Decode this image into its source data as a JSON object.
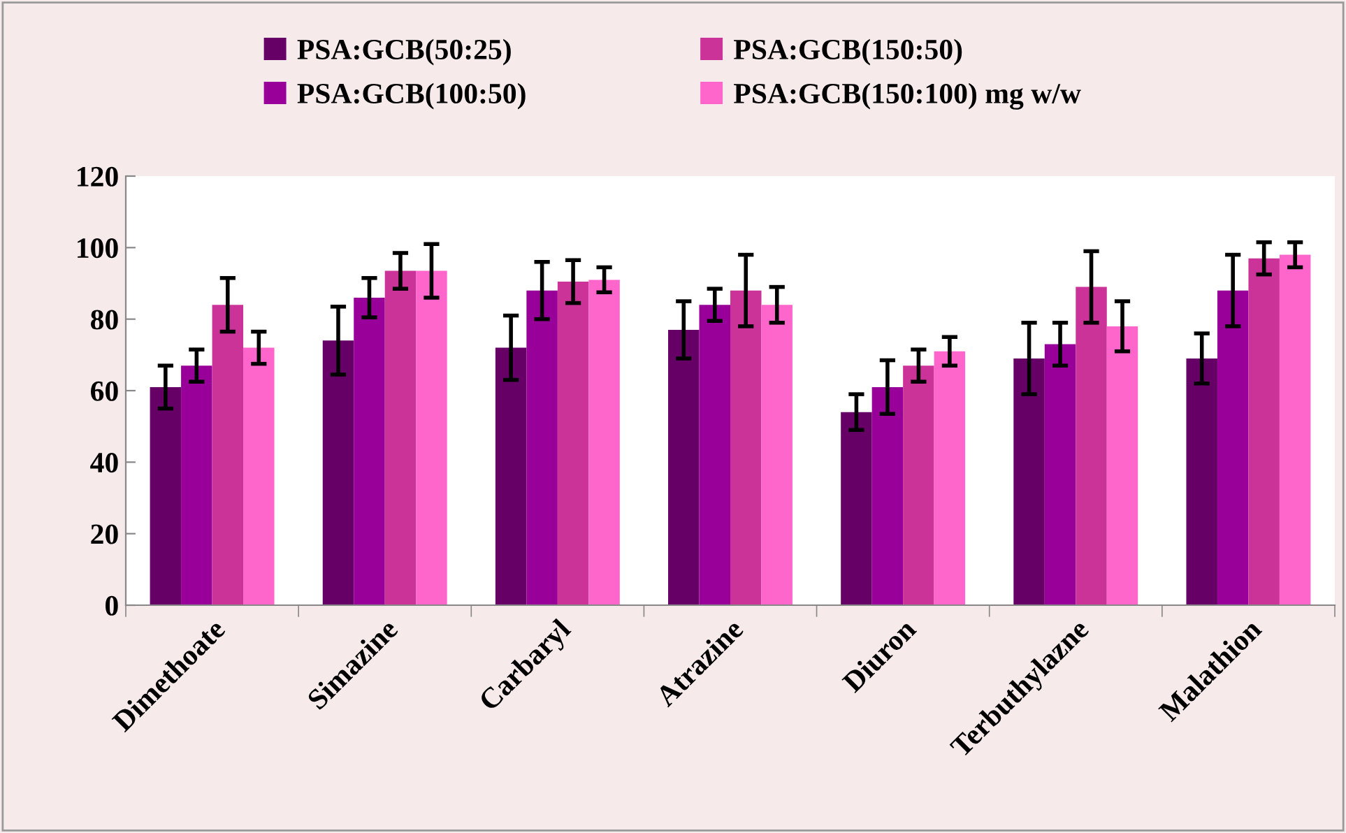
{
  "chart_data": {
    "type": "bar",
    "categories": [
      "Dimethoate",
      "Simazine",
      "Carbaryl",
      "Atrazine",
      "Diuron",
      "Terbuthylazne",
      "Malathion"
    ],
    "series": [
      {
        "name": "PSA:GCB(50:25)",
        "color": "#660066",
        "values": [
          61,
          74,
          72,
          77,
          54,
          69,
          69
        ],
        "errors": [
          6,
          9.5,
          9,
          8,
          5,
          10,
          7
        ]
      },
      {
        "name": "PSA:GCB(100:50)",
        "color": "#990099",
        "values": [
          67,
          86,
          88,
          84,
          61,
          73,
          88
        ],
        "errors": [
          4.5,
          5.5,
          8,
          4.5,
          7.5,
          6,
          10
        ]
      },
      {
        "name": "PSA:GCB(150:50)",
        "color": "#cc3399",
        "values": [
          84,
          93.5,
          90.5,
          88,
          67,
          89,
          97
        ],
        "errors": [
          7.5,
          5,
          6,
          10,
          4.5,
          10,
          4.5
        ]
      },
      {
        "name": "PSA:GCB(150:100) mg w/w",
        "color": "#ff66cc",
        "values": [
          72,
          93.5,
          91,
          84,
          71,
          78,
          98
        ],
        "errors": [
          4.5,
          7.5,
          3.5,
          5,
          4,
          7,
          3.5
        ]
      }
    ],
    "ylim": [
      0,
      120
    ],
    "yticks": [
      0,
      20,
      40,
      60,
      80,
      100,
      120
    ],
    "grid": false,
    "legend": "top"
  }
}
